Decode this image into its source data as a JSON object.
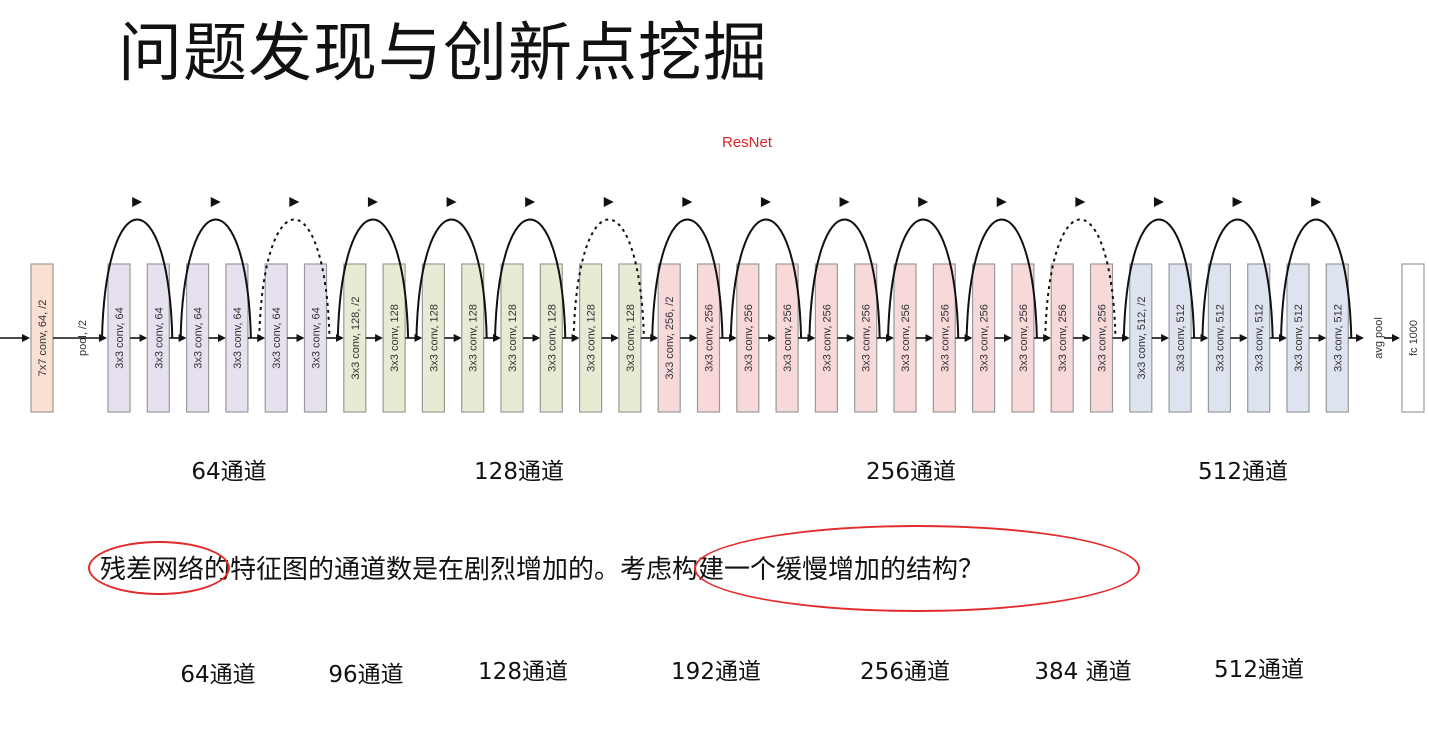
{
  "title": "问题发现与创新点挖掘",
  "network_label": "ResNet",
  "first_layer": "7x7 conv, 64, /2",
  "pool_label": "pool, /2",
  "layers": [
    {
      "label": "3x3 conv, 64",
      "stage": 0
    },
    {
      "label": "3x3 conv, 64",
      "stage": 0
    },
    {
      "label": "3x3 conv, 64",
      "stage": 0
    },
    {
      "label": "3x3 conv, 64",
      "stage": 0
    },
    {
      "label": "3x3 conv, 64",
      "stage": 0
    },
    {
      "label": "3x3 conv, 64",
      "stage": 0
    },
    {
      "label": "3x3 conv, 128, /2",
      "stage": 1
    },
    {
      "label": "3x3 conv, 128",
      "stage": 1
    },
    {
      "label": "3x3 conv, 128",
      "stage": 1
    },
    {
      "label": "3x3 conv, 128",
      "stage": 1
    },
    {
      "label": "3x3 conv, 128",
      "stage": 1
    },
    {
      "label": "3x3 conv, 128",
      "stage": 1
    },
    {
      "label": "3x3 conv, 128",
      "stage": 1
    },
    {
      "label": "3x3 conv, 128",
      "stage": 1
    },
    {
      "label": "3x3 conv, 256, /2",
      "stage": 2
    },
    {
      "label": "3x3 conv, 256",
      "stage": 2
    },
    {
      "label": "3x3 conv, 256",
      "stage": 2
    },
    {
      "label": "3x3 conv, 256",
      "stage": 2
    },
    {
      "label": "3x3 conv, 256",
      "stage": 2
    },
    {
      "label": "3x3 conv, 256",
      "stage": 2
    },
    {
      "label": "3x3 conv, 256",
      "stage": 2
    },
    {
      "label": "3x3 conv, 256",
      "stage": 2
    },
    {
      "label": "3x3 conv, 256",
      "stage": 2
    },
    {
      "label": "3x3 conv, 256",
      "stage": 2
    },
    {
      "label": "3x3 conv, 256",
      "stage": 2
    },
    {
      "label": "3x3 conv, 256",
      "stage": 2
    },
    {
      "label": "3x3 conv, 512, /2",
      "stage": 3
    },
    {
      "label": "3x3 conv, 512",
      "stage": 3
    },
    {
      "label": "3x3 conv, 512",
      "stage": 3
    },
    {
      "label": "3x3 conv, 512",
      "stage": 3
    },
    {
      "label": "3x3 conv, 512",
      "stage": 3
    },
    {
      "label": "3x3 conv, 512",
      "stage": 3
    }
  ],
  "avg_pool_label": "avg pool",
  "fc_label": "fc 1000",
  "colors": {
    "first": "#f9e0d2",
    "stages": [
      "#e6e0ef",
      "#e5ecd3",
      "#f8d9da",
      "#dde3ef"
    ],
    "fc": "#ffffff",
    "stroke": "#9a9a9a",
    "accent": "#e32b2b"
  },
  "top_channels": [
    "64通道",
    "128通道",
    "256通道",
    "512通道"
  ],
  "sentence": {
    "part1": "残差网络",
    "part2": "的特征图的通道数是在剧烈增加的。",
    "part3": "考虑构建一个缓慢增加的结构？"
  },
  "bottom_channels": [
    "64通道",
    "96通道",
    "128通道",
    "192通道",
    "256通道",
    "384 通道",
    "512通道"
  ]
}
